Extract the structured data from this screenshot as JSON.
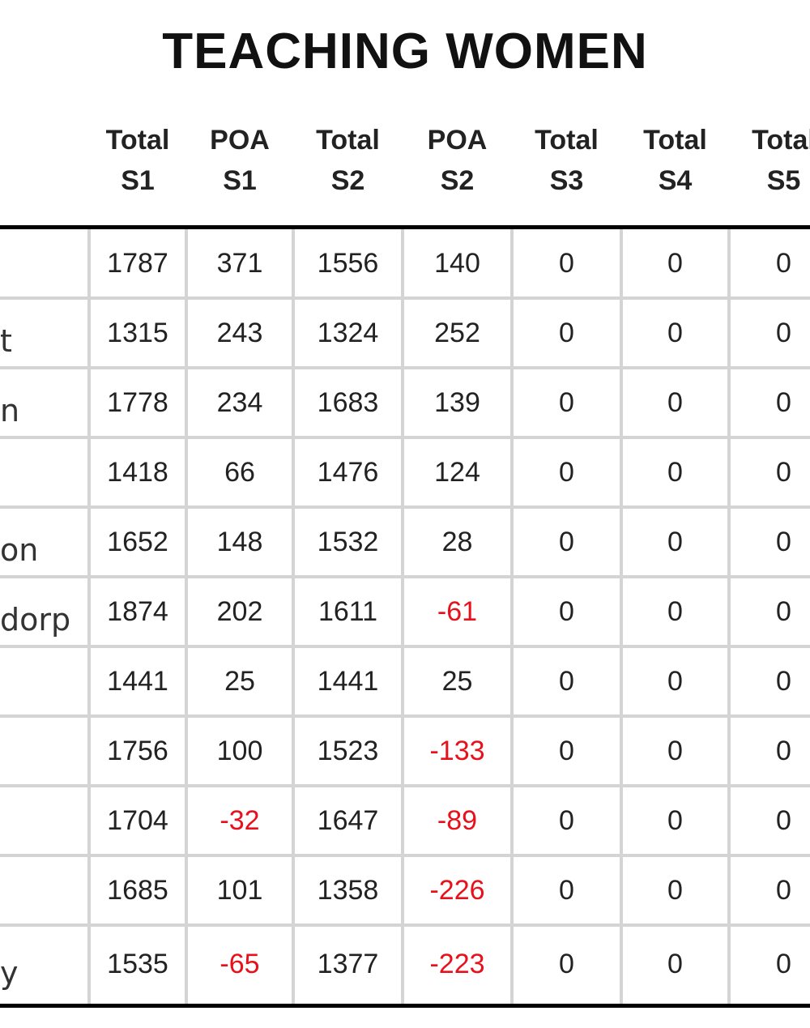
{
  "title": "TEACHING WOMEN",
  "table": {
    "headers": [
      [
        "Total",
        "S1"
      ],
      [
        "POA",
        "S1"
      ],
      [
        "Total",
        "S2"
      ],
      [
        "POA",
        "S2"
      ],
      [
        "Total",
        "S3"
      ],
      [
        "Total",
        "S4"
      ],
      [
        "Total",
        "S5"
      ]
    ],
    "rows": [
      {
        "values": [
          1787,
          371,
          1556,
          140,
          0,
          0,
          0
        ]
      },
      {
        "name": "t",
        "values": [
          1315,
          243,
          1324,
          252,
          0,
          0,
          0
        ]
      },
      {
        "name": "n",
        "values": [
          1778,
          234,
          1683,
          139,
          0,
          0,
          0
        ]
      },
      {
        "values": [
          1418,
          66,
          1476,
          124,
          0,
          0,
          0
        ]
      },
      {
        "name": "on",
        "values": [
          1652,
          148,
          1532,
          28,
          0,
          0,
          0
        ]
      },
      {
        "name": "dorp",
        "values": [
          1874,
          202,
          1611,
          -61,
          0,
          0,
          0
        ]
      },
      {
        "values": [
          1441,
          25,
          1441,
          25,
          0,
          0,
          0
        ]
      },
      {
        "values": [
          1756,
          100,
          1523,
          -133,
          0,
          0,
          0
        ]
      },
      {
        "values": [
          1704,
          -32,
          1647,
          -89,
          0,
          0,
          0
        ]
      },
      {
        "values": [
          1685,
          101,
          1358,
          -226,
          0,
          0,
          0
        ]
      },
      {
        "name": "y",
        "values": [
          1535,
          -65,
          1377,
          -223,
          0,
          0,
          0
        ]
      }
    ]
  }
}
